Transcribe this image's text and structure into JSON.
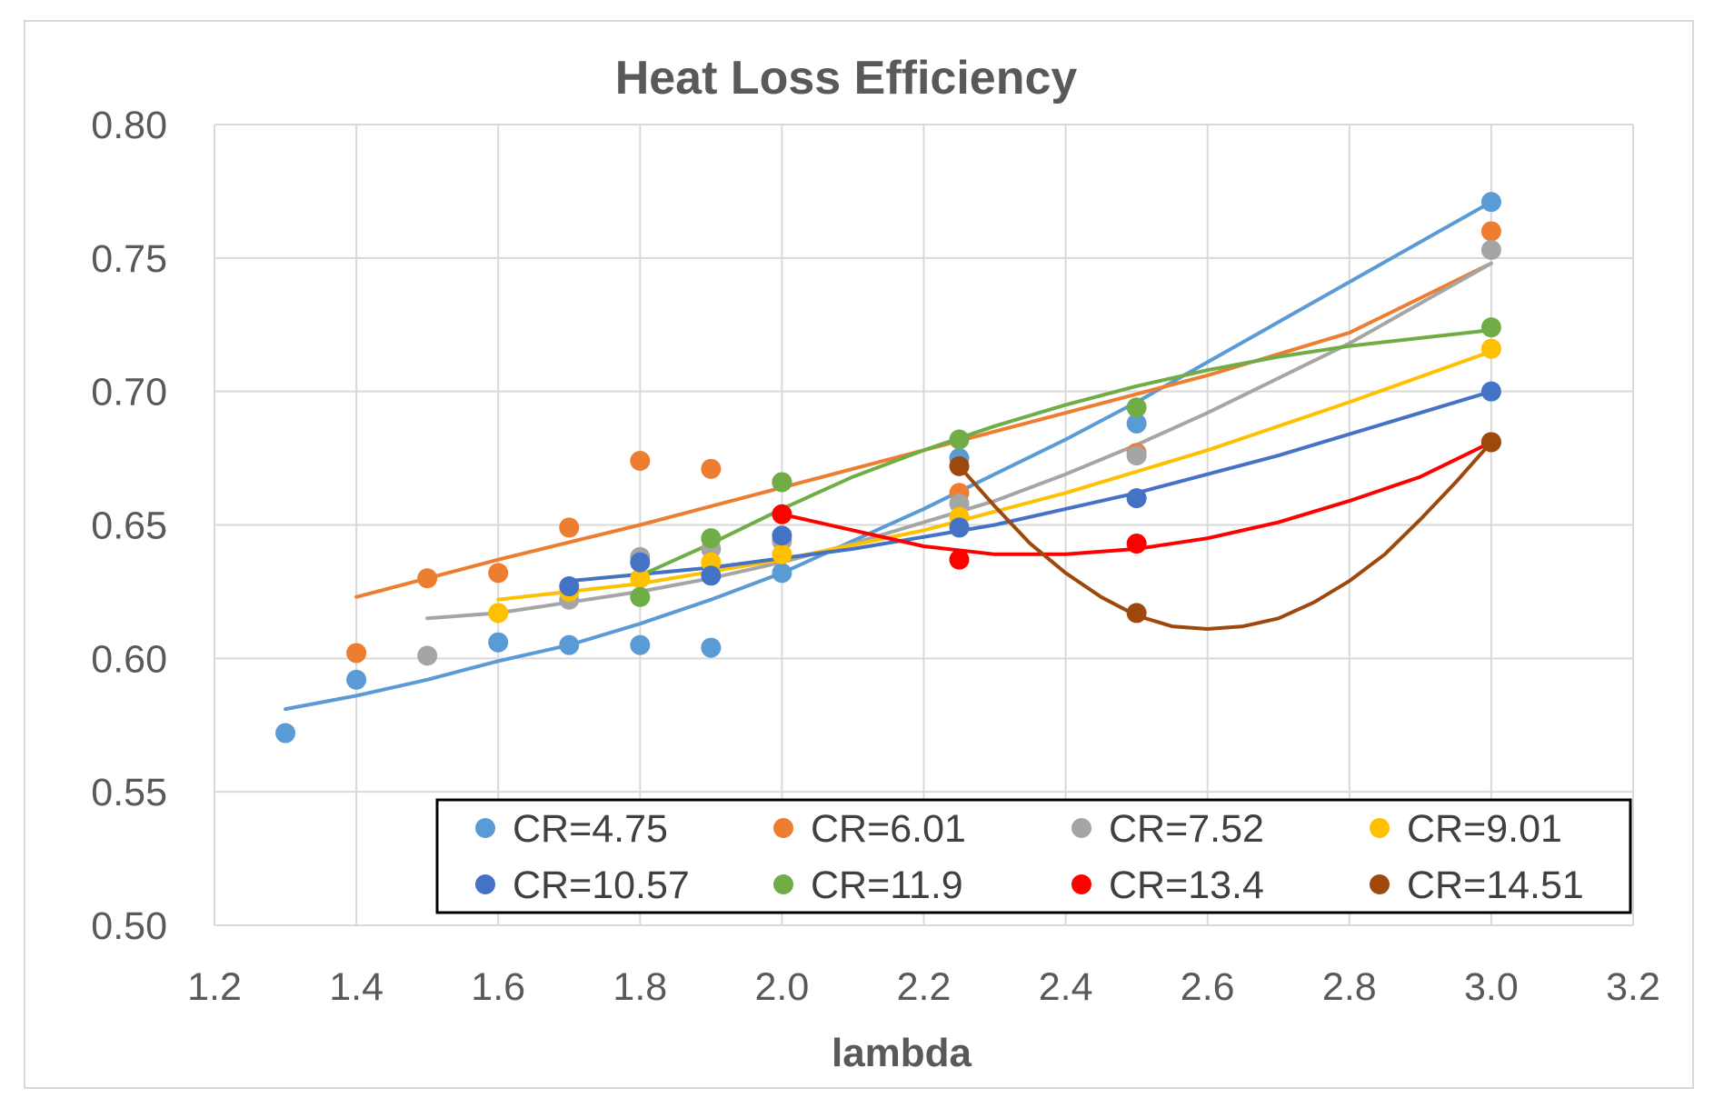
{
  "chart_data": {
    "type": "scatter",
    "title": "Heat Loss Efficiency",
    "xlabel": "lambda",
    "ylabel": "",
    "xlim": [
      1.2,
      3.2
    ],
    "ylim": [
      0.5,
      0.8
    ],
    "xticks": [
      1.2,
      1.4,
      1.6,
      1.8,
      2.0,
      2.2,
      2.4,
      2.6,
      2.8,
      3.0,
      3.2
    ],
    "xtick_labels": [
      "1.2",
      "1.4",
      "1.6",
      "1.8",
      "2.0",
      "2.2",
      "2.4",
      "2.6",
      "2.8",
      "3.0",
      "3.2"
    ],
    "yticks": [
      0.5,
      0.55,
      0.6,
      0.65,
      0.7,
      0.75,
      0.8
    ],
    "ytick_labels": [
      "0.50",
      "0.55",
      "0.60",
      "0.65",
      "0.70",
      "0.75",
      "0.80"
    ],
    "grid": true,
    "legend_position": "bottom-right",
    "series": [
      {
        "name": "CR=4.75",
        "color": "#5B9BD5",
        "x": [
          1.3,
          1.4,
          1.6,
          1.7,
          1.8,
          1.9,
          2.0,
          2.25,
          2.5,
          3.0
        ],
        "y": [
          0.572,
          0.592,
          0.606,
          0.605,
          0.605,
          0.604,
          0.632,
          0.675,
          0.688,
          0.771
        ],
        "trend": {
          "x": [
            1.3,
            1.4,
            1.5,
            1.6,
            1.7,
            1.8,
            1.9,
            2.0,
            2.1,
            2.2,
            2.3,
            2.4,
            2.5,
            2.6,
            2.7,
            2.8,
            2.9,
            3.0
          ],
          "y": [
            0.581,
            0.586,
            0.592,
            0.599,
            0.605,
            0.613,
            0.622,
            0.632,
            0.644,
            0.656,
            0.669,
            0.682,
            0.696,
            0.711,
            0.726,
            0.741,
            0.756,
            0.771
          ]
        }
      },
      {
        "name": "CR=6.01",
        "color": "#ED7D31",
        "x": [
          1.4,
          1.5,
          1.6,
          1.7,
          1.8,
          1.9,
          2.0,
          2.25,
          2.5,
          3.0
        ],
        "y": [
          0.602,
          0.63,
          0.632,
          0.649,
          0.674,
          0.671,
          0.666,
          0.662,
          0.677,
          0.76
        ],
        "trend": {
          "x": [
            1.4,
            1.6,
            1.8,
            2.0,
            2.2,
            2.4,
            2.6,
            2.8,
            3.0
          ],
          "y": [
            0.623,
            0.637,
            0.65,
            0.664,
            0.678,
            0.692,
            0.706,
            0.722,
            0.748
          ]
        }
      },
      {
        "name": "CR=7.52",
        "color": "#A5A5A5",
        "x": [
          1.5,
          1.7,
          1.8,
          1.9,
          2.0,
          2.25,
          2.5,
          3.0
        ],
        "y": [
          0.601,
          0.622,
          0.638,
          0.641,
          0.644,
          0.658,
          0.676,
          0.753
        ],
        "trend": {
          "x": [
            1.5,
            1.6,
            1.7,
            1.8,
            1.9,
            2.0,
            2.1,
            2.2,
            2.3,
            2.4,
            2.5,
            2.6,
            2.7,
            2.8,
            2.9,
            3.0
          ],
          "y": [
            0.615,
            0.617,
            0.621,
            0.625,
            0.63,
            0.636,
            0.643,
            0.651,
            0.659,
            0.669,
            0.68,
            0.692,
            0.705,
            0.718,
            0.733,
            0.748
          ]
        }
      },
      {
        "name": "CR=9.01",
        "color": "#FFC000",
        "x": [
          1.6,
          1.7,
          1.8,
          1.9,
          2.0,
          2.25,
          3.0
        ],
        "y": [
          0.617,
          0.625,
          0.63,
          0.636,
          0.639,
          0.653,
          0.716
        ],
        "trend": {
          "x": [
            1.6,
            1.8,
            2.0,
            2.2,
            2.4,
            2.6,
            2.8,
            3.0
          ],
          "y": [
            0.622,
            0.628,
            0.637,
            0.648,
            0.662,
            0.678,
            0.696,
            0.715
          ]
        }
      },
      {
        "name": "CR=10.57",
        "color": "#4472C4",
        "x": [
          1.7,
          1.8,
          1.9,
          2.0,
          2.25,
          2.5,
          3.0
        ],
        "y": [
          0.627,
          0.636,
          0.631,
          0.646,
          0.649,
          0.66,
          0.7
        ],
        "trend": {
          "x": [
            1.7,
            1.9,
            2.1,
            2.3,
            2.5,
            2.7,
            2.9,
            3.0
          ],
          "y": [
            0.629,
            0.634,
            0.641,
            0.65,
            0.662,
            0.676,
            0.692,
            0.7
          ]
        }
      },
      {
        "name": "CR=11.9",
        "color": "#70AD47",
        "x": [
          1.8,
          1.9,
          2.0,
          2.25,
          2.5,
          3.0
        ],
        "y": [
          0.623,
          0.645,
          0.666,
          0.682,
          0.694,
          0.724
        ],
        "trend": {
          "x": [
            1.8,
            1.9,
            2.0,
            2.1,
            2.2,
            2.3,
            2.4,
            2.5,
            2.6,
            2.7,
            2.8,
            2.9,
            3.0
          ],
          "y": [
            0.631,
            0.643,
            0.656,
            0.668,
            0.678,
            0.687,
            0.695,
            0.702,
            0.708,
            0.713,
            0.717,
            0.72,
            0.723
          ]
        }
      },
      {
        "name": "CR=13.4",
        "color": "#FF0000",
        "x": [
          2.0,
          2.25,
          2.5,
          3.0
        ],
        "y": [
          0.654,
          0.637,
          0.643,
          0.681
        ],
        "trend": {
          "x": [
            2.0,
            2.1,
            2.2,
            2.3,
            2.4,
            2.5,
            2.6,
            2.7,
            2.8,
            2.9,
            3.0
          ],
          "y": [
            0.654,
            0.648,
            0.642,
            0.639,
            0.639,
            0.641,
            0.645,
            0.651,
            0.659,
            0.668,
            0.681
          ]
        }
      },
      {
        "name": "CR=14.51",
        "color": "#9E480E",
        "x": [
          2.25,
          2.5,
          3.0
        ],
        "y": [
          0.672,
          0.617,
          0.681
        ],
        "trend": {
          "x": [
            2.25,
            2.3,
            2.35,
            2.4,
            2.45,
            2.5,
            2.55,
            2.6,
            2.65,
            2.7,
            2.75,
            2.8,
            2.85,
            2.9,
            2.95,
            3.0
          ],
          "y": [
            0.672,
            0.657,
            0.643,
            0.632,
            0.623,
            0.616,
            0.612,
            0.611,
            0.612,
            0.615,
            0.621,
            0.629,
            0.639,
            0.652,
            0.666,
            0.681
          ]
        }
      }
    ]
  }
}
